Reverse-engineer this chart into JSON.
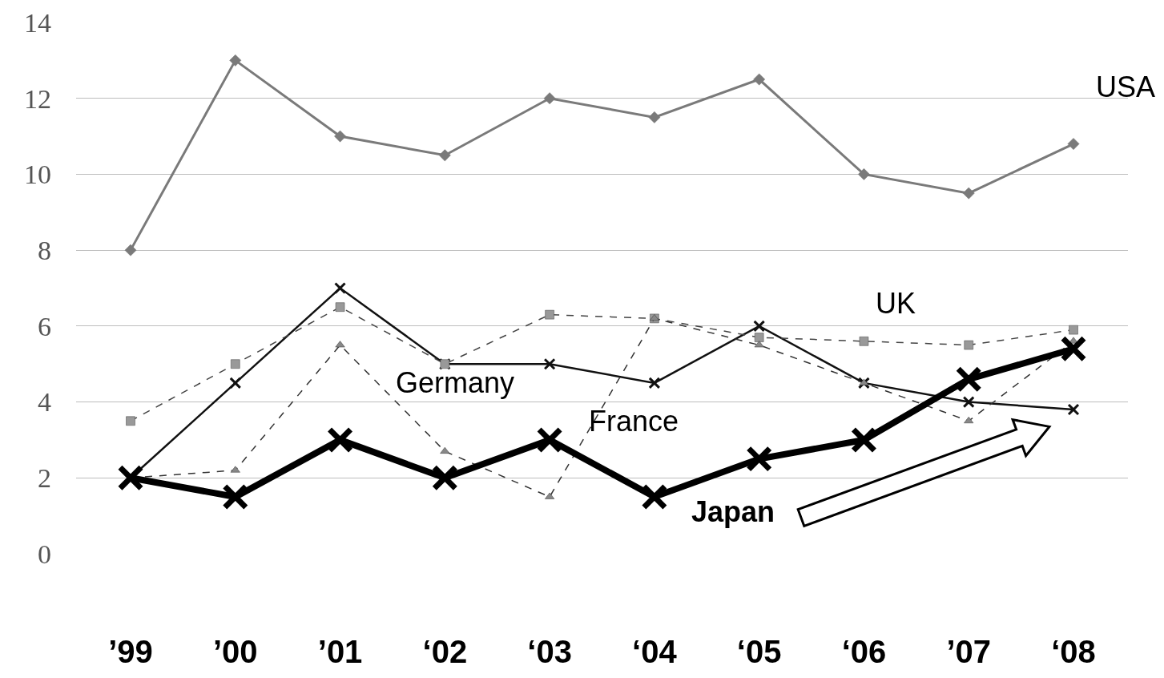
{
  "chart_data": {
    "type": "line",
    "categories": [
      "’99",
      "’00",
      "’01",
      "‘02",
      "‘03",
      "‘04",
      "‘05",
      "‘06",
      "’07",
      "‘08"
    ],
    "series": [
      {
        "name": "USA",
        "color": "#7a7a7a",
        "marker": "diamond",
        "line_style": "solid",
        "values": [
          8,
          13,
          11,
          10.5,
          12,
          11.5,
          12.5,
          10,
          9.5,
          10.8
        ]
      },
      {
        "name": "Germany",
        "color": "#111111",
        "marker": "cross",
        "line_style": "solid",
        "values": [
          2,
          4.5,
          7,
          5,
          5,
          4.5,
          6,
          4.5,
          4,
          3.8
        ]
      },
      {
        "name": "UK",
        "color": "#444444",
        "marker": "square",
        "line_style": "dashed",
        "values": [
          3.5,
          5,
          6.5,
          5,
          6.3,
          6.2,
          5.7,
          5.6,
          5.5,
          5.9
        ]
      },
      {
        "name": "France",
        "color": "#333333",
        "marker": "triangle",
        "line_style": "dashed",
        "values": [
          2,
          2.2,
          5.5,
          2.7,
          1.5,
          6.2,
          5.5,
          4.5,
          3.5,
          5.6
        ]
      },
      {
        "name": "Japan",
        "color": "#000000",
        "marker": "cross",
        "line_style": "solid",
        "values": [
          2,
          1.5,
          3,
          2,
          3,
          1.5,
          2.5,
          3,
          4.6,
          5.4
        ]
      }
    ],
    "ylim": [
      0,
      14
    ],
    "yticks": [
      0,
      2,
      4,
      6,
      8,
      10,
      12,
      14
    ],
    "grid": "y",
    "legend": false
  }
}
